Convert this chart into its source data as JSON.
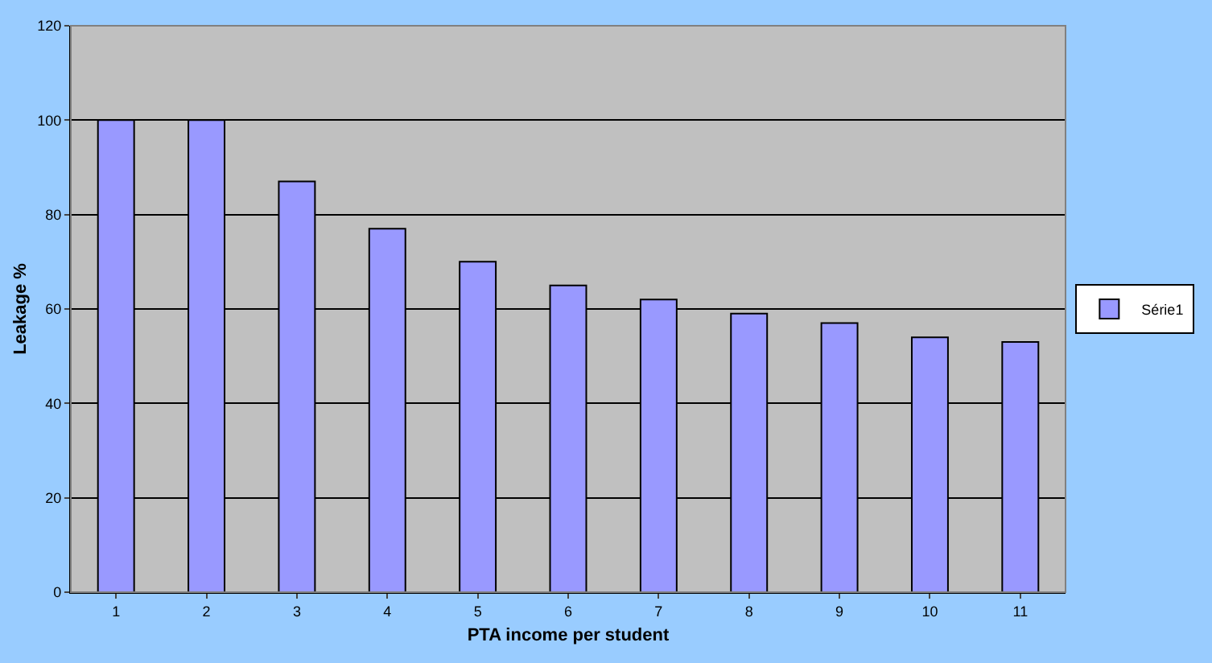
{
  "chart_data": {
    "type": "bar",
    "xlabel": "PTA income per student",
    "ylabel": "Leakage %",
    "categories": [
      "1",
      "2",
      "3",
      "4",
      "5",
      "6",
      "7",
      "8",
      "9",
      "10",
      "11"
    ],
    "series": [
      {
        "name": "Série1",
        "color": "#9999ff",
        "values": [
          100,
          100,
          87,
          77,
          70,
          65,
          62,
          59,
          57,
          54,
          53
        ]
      }
    ],
    "ylim": [
      0,
      120
    ],
    "yticks": [
      0,
      20,
      40,
      60,
      80,
      100,
      120
    ],
    "grid": "y",
    "legend": "right"
  }
}
